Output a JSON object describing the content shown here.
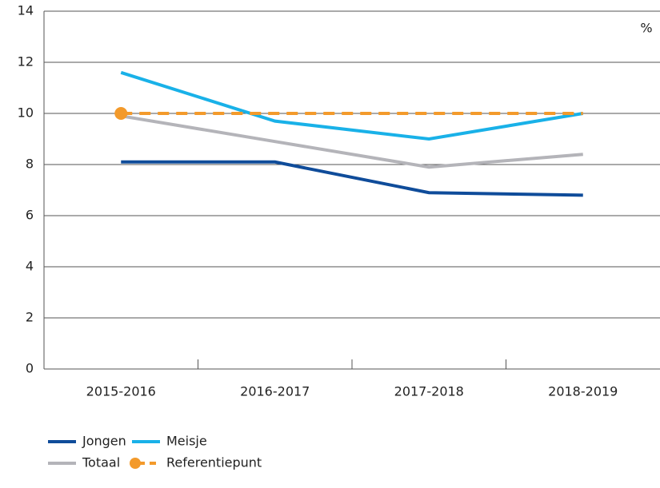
{
  "chart_data": {
    "type": "line",
    "unit": "%",
    "categories": [
      "2015-2016",
      "2016-2017",
      "2017-2018",
      "2018-2019"
    ],
    "series": [
      {
        "name": "Jongen",
        "color": "#0f4c9a",
        "values": [
          8.1,
          8.1,
          6.9,
          6.8
        ]
      },
      {
        "name": "Meisje",
        "color": "#19b1e8",
        "values": [
          11.6,
          9.7,
          9.0,
          10.0
        ]
      },
      {
        "name": "Totaal",
        "color": "#b4b4b9",
        "values": [
          9.9,
          8.9,
          7.9,
          8.4
        ]
      },
      {
        "name": "Referentiepunt",
        "color": "#f39a2b",
        "values": [
          10,
          10,
          10,
          10
        ],
        "line_style": "dashed",
        "marker": "circle"
      }
    ],
    "ylim": [
      0,
      14
    ],
    "yticks": [
      0,
      2,
      4,
      6,
      8,
      10,
      12,
      14
    ],
    "grid": true
  }
}
